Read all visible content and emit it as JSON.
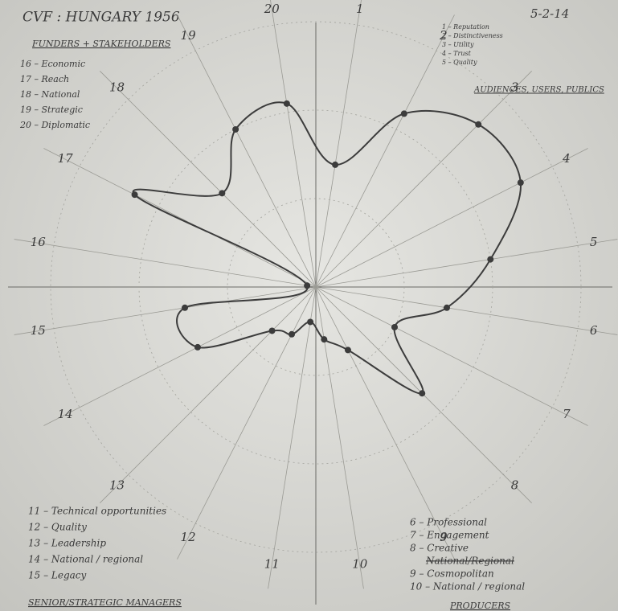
{
  "chart_data": {
    "type": "radar",
    "title": "CVF : HUNGARY 1956",
    "date": "5-2-14",
    "categories": [
      "1",
      "2",
      "3",
      "4",
      "5",
      "6",
      "7",
      "8",
      "9",
      "10",
      "11",
      "12",
      "13",
      "14",
      "15",
      "16",
      "17",
      "18",
      "19",
      "20"
    ],
    "values": [
      1.4,
      2.2,
      2.6,
      2.6,
      2.0,
      1.5,
      1.0,
      1.7,
      0.8,
      0.6,
      0.4,
      0.6,
      0.7,
      1.5,
      1.5,
      0.1,
      2.3,
      1.5,
      2.0,
      2.1
    ],
    "color": "#3c3c3c",
    "rlim": [
      0,
      3
    ],
    "rticks": [
      1,
      2,
      3
    ],
    "annotations": [
      {
        "heading": "FUNDERS + STAKEHOLDERS",
        "items": [
          "16 – Economic",
          "17 – Reach",
          "18 – National",
          "19 – Strategic",
          "20 – Diplomatic"
        ]
      },
      {
        "heading": "AUDIENCES, USERS, PUBLICS",
        "items": [
          "1 – Reputation",
          "2 – Distinctiveness",
          "3 – Utility",
          "4 – Trust",
          "5 – Quality"
        ]
      },
      {
        "heading": "SENIOR/STRATEGIC MANAGERS",
        "items": [
          "11 – Technical opportunities",
          "12 – Quality",
          "13 – Leadership",
          "14 – National / regional",
          "15 – Legacy"
        ]
      },
      {
        "heading": "PRODUCERS",
        "items": [
          "6 – Professional",
          "7 – Engagement",
          "8 – Creative",
          {
            "text": "National/Regional",
            "struck": true
          },
          "9 – Cosmopolitan",
          "10 – National / regional"
        ]
      }
    ]
  }
}
